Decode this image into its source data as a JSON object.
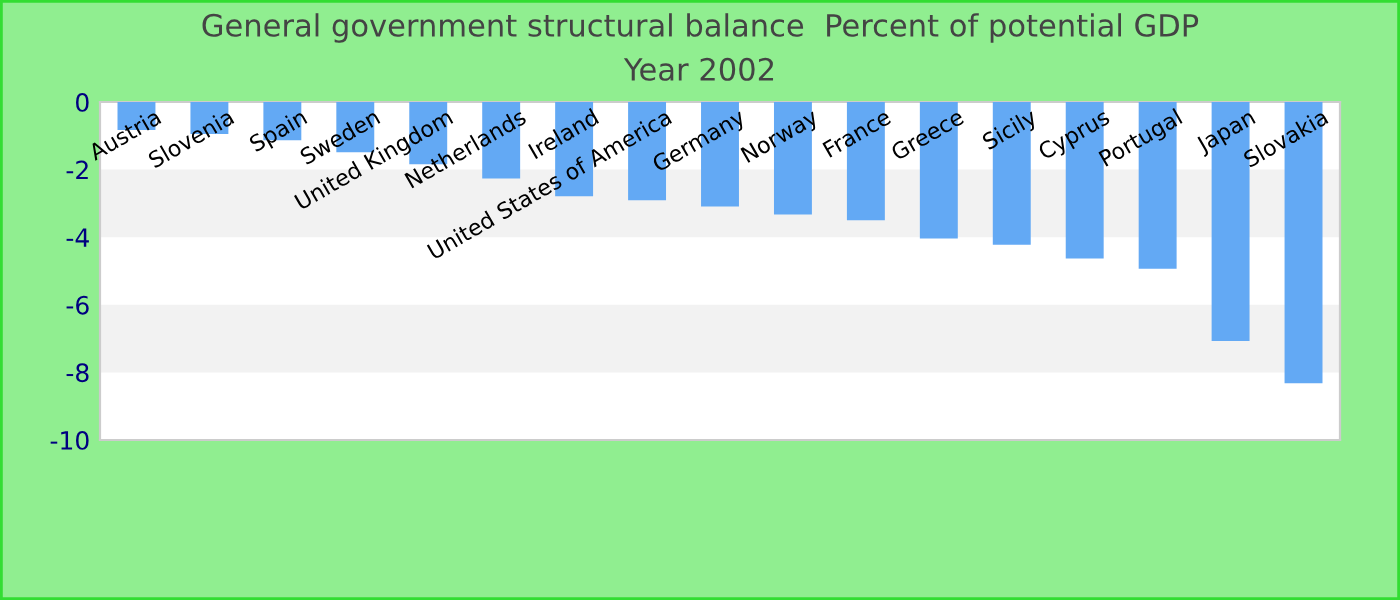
{
  "chart_data": {
    "type": "bar",
    "title": "General government structural balance  Percent of potential GDP",
    "subtitle": "Year 2002",
    "categories": [
      "Austria",
      "Slovenia",
      "Spain",
      "Sweden",
      "United Kingdom",
      "Netherlands",
      "Ireland",
      "United States of America",
      "Germany",
      "Norway",
      "France",
      "Greece",
      "Sicily",
      "Cyprus",
      "Portugal",
      "Japan",
      "Slovakia"
    ],
    "values": [
      -0.83,
      -0.95,
      -1.13,
      -1.49,
      -1.84,
      -2.26,
      -2.79,
      -2.91,
      -3.09,
      -3.33,
      -3.5,
      -4.04,
      -4.22,
      -4.63,
      -4.93,
      -7.07,
      -8.32
    ],
    "color": "#63a9f4",
    "ylim": [
      -10,
      0
    ],
    "yticks": [
      -10,
      -8,
      -6,
      -4,
      -2,
      0
    ],
    "bands": [
      {
        "axis": "y",
        "from": -4,
        "to": -2,
        "color": "#f2f2f2"
      },
      {
        "axis": "y",
        "from": -8,
        "to": -6,
        "color": "#f2f2f2"
      }
    ]
  }
}
